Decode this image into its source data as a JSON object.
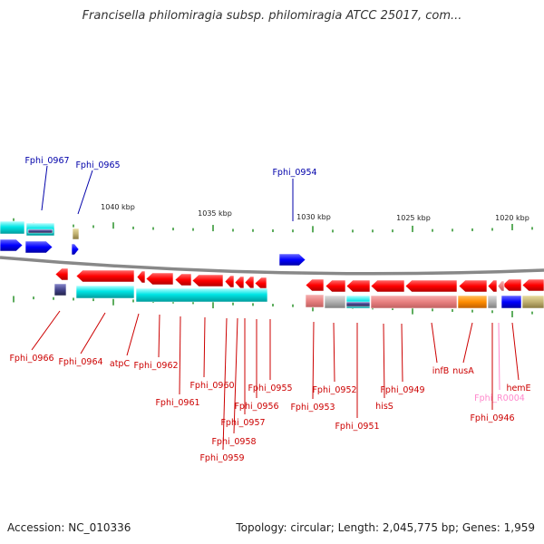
{
  "title": "Francisella philomiragia subsp. philomiragia ATCC 25017, com...",
  "footer": {
    "accession": "Accession: NC_010336",
    "topology": "Topology: circular; Length: 2,045,775 bp; Genes: 1,959"
  },
  "axis": {
    "ticks": [
      "1040 kbp",
      "1035 kbp",
      "1030 kbp",
      "1025 kbp",
      "1020 kbp"
    ]
  },
  "colors": {
    "gene": "#ff0000",
    "cds_cyan": "#00e5e5",
    "rna": "#0000ff",
    "label_red": "#cc0000",
    "label_blue": "#0000aa",
    "label_pink": "#ff88cc",
    "orange": "#ff8c00",
    "pink_block": "#e88080"
  },
  "labels_top": [
    "Fphi_0967",
    "Fphi_0965",
    "Fphi_0954"
  ],
  "labels_bottom": [
    "Fphi_0966",
    "Fphi_0964",
    "atpC",
    "Fphi_0962",
    "Fphi_0961",
    "Fphi_0960",
    "Fphi_0959",
    "Fphi_0958",
    "Fphi_0957",
    "Fphi_0956",
    "Fphi_0955",
    "Fphi_0953",
    "Fphi_0952",
    "Fphi_0951",
    "hisS",
    "Fphi_0949",
    "infB",
    "nusA",
    "Fphi_R0004",
    "Fphi_0946",
    "hemE"
  ]
}
